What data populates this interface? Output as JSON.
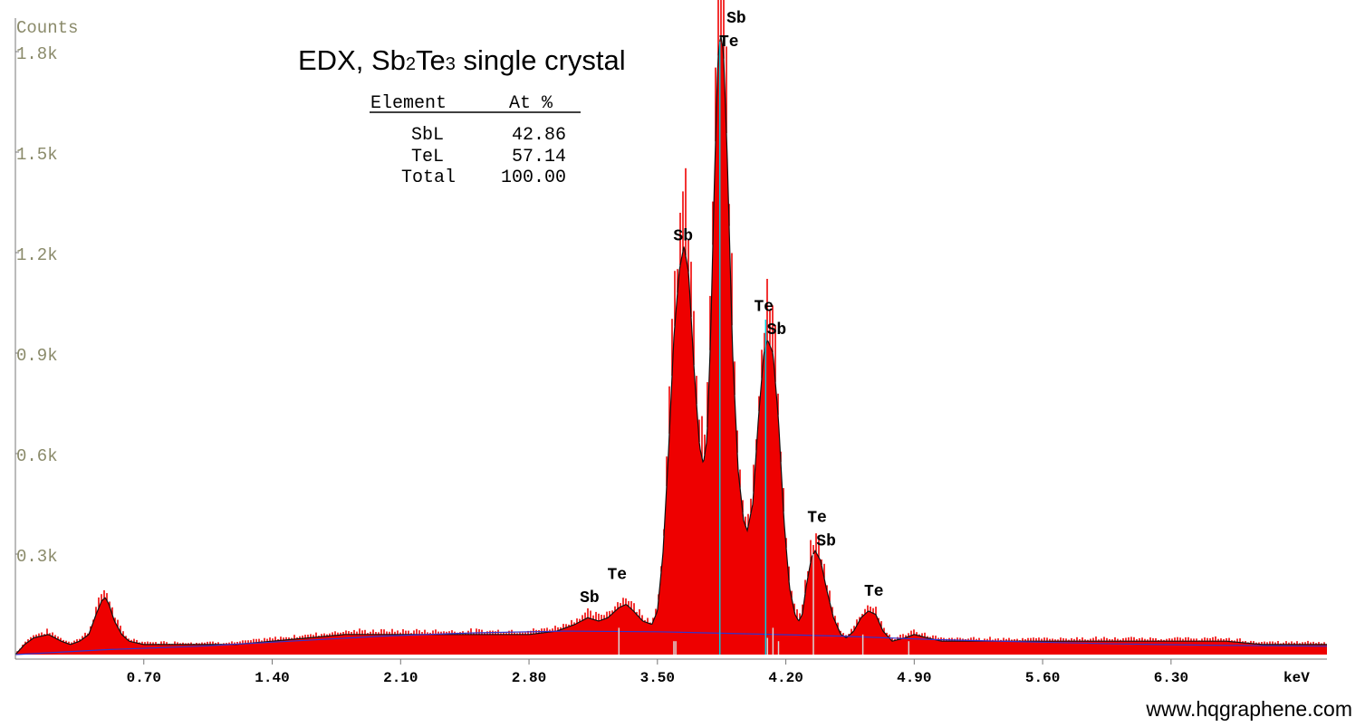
{
  "chart_data": {
    "type": "area",
    "title": "EDX, Sb2Te3 single crystal",
    "ylabel": "Counts",
    "xlabel": "keV",
    "xlim": [
      0,
      7.15
    ],
    "ylim": [
      0,
      1.9
    ],
    "y_unit": "k counts",
    "grid": false,
    "y_ticks": [
      {
        "value": 0.3,
        "label": "0.3k"
      },
      {
        "value": 0.6,
        "label": "0.6k"
      },
      {
        "value": 0.9,
        "label": "0.9k"
      },
      {
        "value": 1.2,
        "label": "1.2k"
      },
      {
        "value": 1.5,
        "label": "1.5k"
      },
      {
        "value": 1.8,
        "label": "1.8k"
      }
    ],
    "x_ticks": [
      {
        "value": 0.7,
        "label": "0.70"
      },
      {
        "value": 1.4,
        "label": "1.40"
      },
      {
        "value": 2.1,
        "label": "2.10"
      },
      {
        "value": 2.8,
        "label": "2.80"
      },
      {
        "value": 3.5,
        "label": "3.50"
      },
      {
        "value": 4.2,
        "label": "4.20"
      },
      {
        "value": 4.9,
        "label": "4.90"
      },
      {
        "value": 5.6,
        "label": "5.60"
      },
      {
        "value": 6.3,
        "label": "6.30"
      }
    ],
    "series": [
      {
        "color": "#ee0000",
        "points": [
          [
            0.0,
            0.0
          ],
          [
            0.05,
            0.03
          ],
          [
            0.1,
            0.05
          ],
          [
            0.18,
            0.06
          ],
          [
            0.25,
            0.04
          ],
          [
            0.3,
            0.03
          ],
          [
            0.35,
            0.04
          ],
          [
            0.4,
            0.06
          ],
          [
            0.44,
            0.12
          ],
          [
            0.47,
            0.16
          ],
          [
            0.49,
            0.17
          ],
          [
            0.51,
            0.15
          ],
          [
            0.54,
            0.1
          ],
          [
            0.58,
            0.06
          ],
          [
            0.62,
            0.04
          ],
          [
            0.7,
            0.03
          ],
          [
            0.8,
            0.03
          ],
          [
            0.9,
            0.03
          ],
          [
            1.0,
            0.03
          ],
          [
            1.2,
            0.03
          ],
          [
            1.4,
            0.04
          ],
          [
            1.6,
            0.05
          ],
          [
            1.8,
            0.06
          ],
          [
            2.0,
            0.06
          ],
          [
            2.2,
            0.06
          ],
          [
            2.4,
            0.06
          ],
          [
            2.6,
            0.06
          ],
          [
            2.8,
            0.06
          ],
          [
            2.95,
            0.07
          ],
          [
            3.05,
            0.09
          ],
          [
            3.12,
            0.11
          ],
          [
            3.18,
            0.1
          ],
          [
            3.23,
            0.11
          ],
          [
            3.29,
            0.14
          ],
          [
            3.33,
            0.15
          ],
          [
            3.37,
            0.13
          ],
          [
            3.42,
            0.1
          ],
          [
            3.47,
            0.09
          ],
          [
            3.5,
            0.13
          ],
          [
            3.53,
            0.3
          ],
          [
            3.56,
            0.6
          ],
          [
            3.59,
            0.95
          ],
          [
            3.62,
            1.15
          ],
          [
            3.645,
            1.22
          ],
          [
            3.67,
            1.14
          ],
          [
            3.7,
            0.85
          ],
          [
            3.73,
            0.62
          ],
          [
            3.75,
            0.57
          ],
          [
            3.77,
            0.64
          ],
          [
            3.79,
            0.95
          ],
          [
            3.81,
            1.4
          ],
          [
            3.83,
            1.78
          ],
          [
            3.845,
            1.85
          ],
          [
            3.86,
            1.8
          ],
          [
            3.88,
            1.5
          ],
          [
            3.91,
            0.9
          ],
          [
            3.94,
            0.55
          ],
          [
            3.97,
            0.4
          ],
          [
            3.99,
            0.37
          ],
          [
            4.02,
            0.45
          ],
          [
            4.05,
            0.7
          ],
          [
            4.08,
            0.9
          ],
          [
            4.1,
            0.94
          ],
          [
            4.13,
            0.9
          ],
          [
            4.16,
            0.7
          ],
          [
            4.19,
            0.4
          ],
          [
            4.22,
            0.2
          ],
          [
            4.25,
            0.12
          ],
          [
            4.27,
            0.1
          ],
          [
            4.29,
            0.12
          ],
          [
            4.31,
            0.2
          ],
          [
            4.34,
            0.29
          ],
          [
            4.36,
            0.31
          ],
          [
            4.39,
            0.28
          ],
          [
            4.42,
            0.2
          ],
          [
            4.46,
            0.11
          ],
          [
            4.5,
            0.06
          ],
          [
            4.53,
            0.05
          ],
          [
            4.57,
            0.07
          ],
          [
            4.61,
            0.11
          ],
          [
            4.65,
            0.13
          ],
          [
            4.69,
            0.12
          ],
          [
            4.73,
            0.07
          ],
          [
            4.78,
            0.04
          ],
          [
            4.85,
            0.05
          ],
          [
            4.9,
            0.06
          ],
          [
            4.97,
            0.05
          ],
          [
            5.05,
            0.04
          ],
          [
            5.2,
            0.04
          ],
          [
            5.4,
            0.04
          ],
          [
            5.6,
            0.04
          ],
          [
            5.8,
            0.04
          ],
          [
            6.0,
            0.04
          ],
          [
            6.2,
            0.04
          ],
          [
            6.4,
            0.04
          ],
          [
            6.6,
            0.04
          ],
          [
            6.8,
            0.03
          ],
          [
            7.0,
            0.03
          ],
          [
            7.15,
            0.03
          ]
        ]
      },
      {
        "color": "#3333cc",
        "role": "background",
        "points": [
          [
            0.0,
            0.0
          ],
          [
            0.5,
            0.015
          ],
          [
            1.0,
            0.025
          ],
          [
            1.5,
            0.04
          ],
          [
            2.0,
            0.055
          ],
          [
            2.5,
            0.065
          ],
          [
            3.0,
            0.07
          ],
          [
            3.5,
            0.068
          ],
          [
            4.0,
            0.062
          ],
          [
            4.5,
            0.055
          ],
          [
            5.0,
            0.045
          ],
          [
            5.5,
            0.038
          ],
          [
            6.0,
            0.032
          ],
          [
            6.5,
            0.028
          ],
          [
            7.15,
            0.025
          ]
        ]
      }
    ],
    "marker_lines": [
      {
        "x": 3.84,
        "height": 1.83,
        "color": "#00d0e0"
      },
      {
        "x": 4.09,
        "height": 1.0,
        "color": "#00d0e0"
      },
      {
        "x": 3.29,
        "height": 0.08,
        "color": "#d8d8d8"
      },
      {
        "x": 3.59,
        "height": 0.04,
        "color": "#d8d8d8"
      },
      {
        "x": 3.6,
        "height": 0.04,
        "color": "#d8d8d8"
      },
      {
        "x": 4.1,
        "height": 0.05,
        "color": "#d8d8d8"
      },
      {
        "x": 4.13,
        "height": 0.08,
        "color": "#d8d8d8"
      },
      {
        "x": 4.16,
        "height": 0.04,
        "color": "#d8d8d8"
      },
      {
        "x": 4.35,
        "height": 0.3,
        "color": "#d8d8d8"
      },
      {
        "x": 4.62,
        "height": 0.06,
        "color": "#d8d8d8"
      },
      {
        "x": 4.87,
        "height": 0.04,
        "color": "#d8d8d8"
      }
    ],
    "annotations": [
      {
        "text": "Sb",
        "x": 3.93,
        "y": 1.87
      },
      {
        "text": "Te",
        "x": 3.89,
        "y": 1.8
      },
      {
        "text": "Sb",
        "x": 3.64,
        "y": 1.22
      },
      {
        "text": "Te",
        "x": 4.08,
        "y": 1.01
      },
      {
        "text": "Sb",
        "x": 4.15,
        "y": 0.94
      },
      {
        "text": "Te",
        "x": 4.37,
        "y": 0.38
      },
      {
        "text": "Sb",
        "x": 4.42,
        "y": 0.31
      },
      {
        "text": "Sb",
        "x": 3.13,
        "y": 0.14
      },
      {
        "text": "Te",
        "x": 3.28,
        "y": 0.21
      },
      {
        "text": "Te",
        "x": 4.68,
        "y": 0.16
      }
    ]
  },
  "composition_table": {
    "headers": [
      "Element",
      "At %"
    ],
    "rows": [
      {
        "element": "SbL",
        "value": "42.86"
      },
      {
        "element": "TeL",
        "value": "57.14"
      },
      {
        "element": "Total",
        "value": "100.00"
      }
    ]
  },
  "title_parts": {
    "pre": "EDX, Sb",
    "sub1": "2",
    "mid": "Te",
    "sub2": "3",
    "post": " single crystal"
  },
  "website": "www.hqgraphene.com",
  "colors": {
    "spectrum": "#ee0000",
    "background_fit": "#3333cc",
    "peak_marker": "#00d0e0",
    "axis_label": "#8a8a6a"
  }
}
